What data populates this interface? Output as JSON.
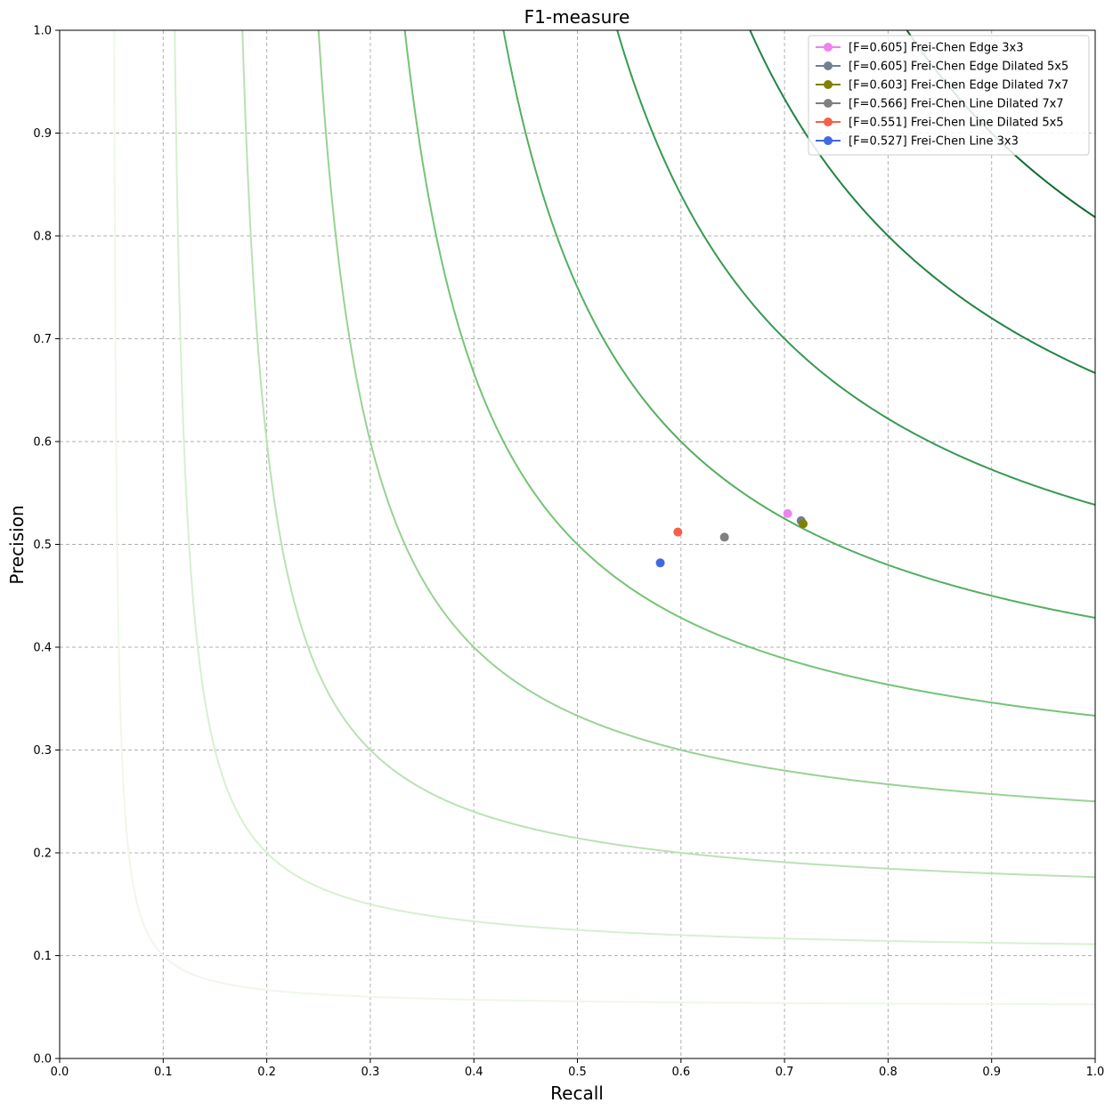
{
  "chart_data": {
    "type": "scatter",
    "title": "F1-measure",
    "xlabel": "Recall",
    "ylabel": "Precision",
    "xlim": [
      0.0,
      1.0
    ],
    "ylim": [
      0.0,
      1.0
    ],
    "xticks": [
      "0.0",
      "0.1",
      "0.2",
      "0.3",
      "0.4",
      "0.5",
      "0.6",
      "0.7",
      "0.8",
      "0.9",
      "1.0"
    ],
    "yticks": [
      "0.0",
      "0.1",
      "0.2",
      "0.3",
      "0.4",
      "0.5",
      "0.6",
      "0.7",
      "0.8",
      "0.9",
      "1.0"
    ],
    "grid": true,
    "legend_position": "top-right",
    "iso_f_curves": [
      {
        "f": 0.1,
        "color": "#eef7ea"
      },
      {
        "f": 0.2,
        "color": "#d8efd2"
      },
      {
        "f": 0.3,
        "color": "#b9e2b3"
      },
      {
        "f": 0.4,
        "color": "#98d294"
      },
      {
        "f": 0.5,
        "color": "#74c476"
      },
      {
        "f": 0.6,
        "color": "#52af61"
      },
      {
        "f": 0.7,
        "color": "#379a52"
      },
      {
        "f": 0.8,
        "color": "#228443"
      },
      {
        "f": 0.9,
        "color": "#0b6b30"
      }
    ],
    "series": [
      {
        "name": "[F=0.605] Frei-Chen Edge 3x3",
        "color": "#ee82ee",
        "x": 0.703,
        "y": 0.53
      },
      {
        "name": "[F=0.605] Frei-Chen Edge Dilated 5x5",
        "color": "#708090",
        "x": 0.716,
        "y": 0.523
      },
      {
        "name": "[F=0.603] Frei-Chen Edge Dilated 7x7",
        "color": "#808000",
        "x": 0.718,
        "y": 0.52
      },
      {
        "name": "[F=0.566] Frei-Chen Line Dilated 7x7",
        "color": "#808080",
        "x": 0.642,
        "y": 0.507
      },
      {
        "name": "[F=0.551] Frei-Chen Line Dilated 5x5",
        "color": "#f4604a",
        "x": 0.597,
        "y": 0.512
      },
      {
        "name": "[F=0.527] Frei-Chen Line 3x3",
        "color": "#4169e1",
        "x": 0.58,
        "y": 0.482
      }
    ]
  }
}
